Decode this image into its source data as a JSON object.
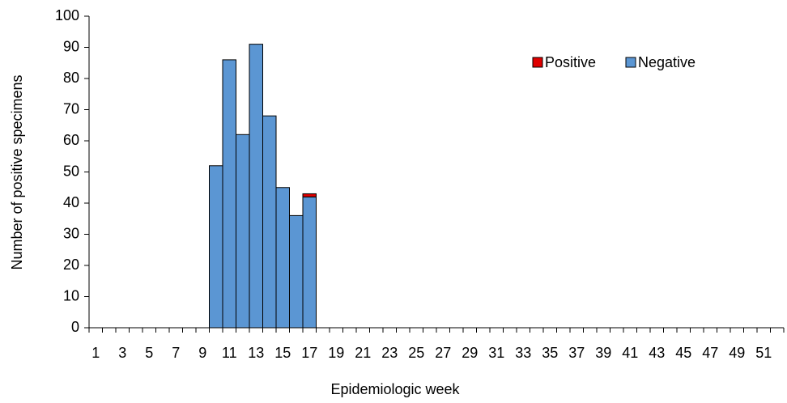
{
  "chart_data": {
    "type": "bar",
    "stacked": true,
    "x_label": "Epidemiologic week",
    "y_label": "Number of positive specimens",
    "categories": [
      "1",
      null,
      "3",
      null,
      "5",
      null,
      "7",
      null,
      "9",
      null,
      "11",
      null,
      "13",
      null,
      "15",
      null,
      "17",
      null,
      "19",
      null,
      "21",
      null,
      "23",
      null,
      "25",
      null,
      "27",
      null,
      "29",
      null,
      "31",
      null,
      "33",
      null,
      "35",
      null,
      "37",
      null,
      "39",
      null,
      "41",
      null,
      "43",
      null,
      "45",
      null,
      "47",
      null,
      "49",
      null,
      "51",
      null
    ],
    "series": [
      {
        "name": "Positive",
        "color": "#e00000",
        "values": [
          0,
          0,
          0,
          0,
          0,
          0,
          0,
          0,
          0,
          0,
          0,
          0,
          0,
          0,
          0,
          0,
          1,
          0,
          0,
          0,
          0,
          0,
          0,
          0,
          0,
          0,
          0,
          0,
          0,
          0,
          0,
          0,
          0,
          0,
          0,
          0,
          0,
          0,
          0,
          0,
          0,
          0,
          0,
          0,
          0,
          0,
          0,
          0,
          0,
          0,
          0,
          0
        ]
      },
      {
        "name": "Negative",
        "color": "#5b96d3",
        "values": [
          0,
          0,
          0,
          0,
          0,
          0,
          0,
          0,
          0,
          52,
          86,
          62,
          91,
          68,
          45,
          36,
          42,
          0,
          0,
          0,
          0,
          0,
          0,
          0,
          0,
          0,
          0,
          0,
          0,
          0,
          0,
          0,
          0,
          0,
          0,
          0,
          0,
          0,
          0,
          0,
          0,
          0,
          0,
          0,
          0,
          0,
          0,
          0,
          0,
          0,
          0,
          0
        ]
      }
    ],
    "ylim": [
      0,
      100
    ],
    "yticks": [
      0,
      10,
      20,
      30,
      40,
      50,
      60,
      70,
      80,
      90,
      100
    ],
    "grid": false,
    "legend": "top-right"
  }
}
